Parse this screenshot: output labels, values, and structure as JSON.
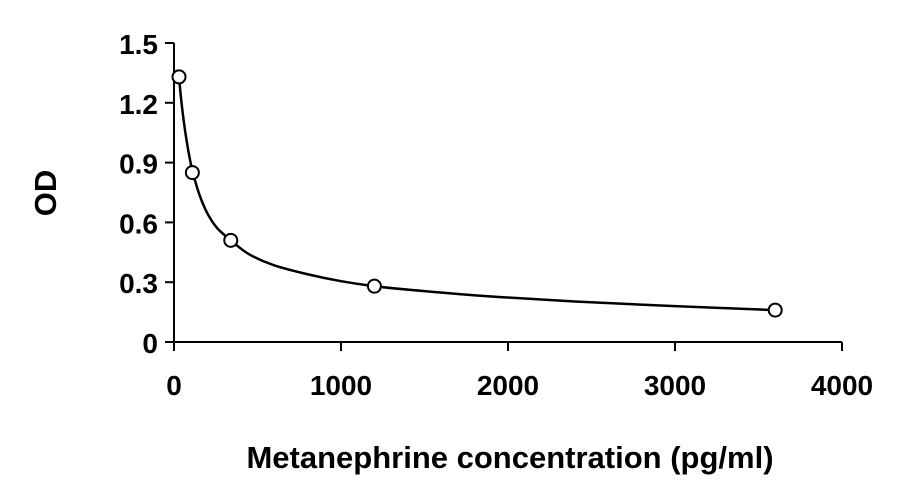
{
  "chart_data": {
    "type": "scatter",
    "title": "",
    "xlabel": "Metanephrine concentration (pg/ml)",
    "ylabel": "OD",
    "xlim": [
      0,
      4000
    ],
    "ylim": [
      0,
      1.5
    ],
    "x_ticks": [
      0,
      1000,
      2000,
      3000,
      4000
    ],
    "x_tick_labels": [
      "0",
      "1000",
      "2000",
      "3000",
      "4000"
    ],
    "y_ticks": [
      0,
      0.3,
      0.6,
      0.9,
      1.2,
      1.5
    ],
    "y_tick_labels": [
      "0",
      "0.3",
      "0.6",
      "0.9",
      "1.2",
      "1.5"
    ],
    "grid": false,
    "legend": "none",
    "marker": "open-circle",
    "trendline": "smooth fitted curve",
    "colors": {
      "axis": "#000000",
      "points": "#000000",
      "curve": "#000000"
    },
    "series": [
      {
        "x": [
          30,
          110,
          340,
          1200,
          3600
        ],
        "y": [
          1.33,
          0.85,
          0.51,
          0.28,
          0.16
        ]
      }
    ],
    "fit_curve": {
      "x": [
        30,
        40,
        55,
        70,
        90,
        110,
        140,
        170,
        210,
        260,
        340,
        450,
        600,
        800,
        1000,
        1200,
        1500,
        1900,
        2400,
        3000,
        3600
      ],
      "y": [
        1.33,
        1.24,
        1.13,
        1.04,
        0.94,
        0.86,
        0.77,
        0.7,
        0.63,
        0.57,
        0.51,
        0.44,
        0.385,
        0.34,
        0.305,
        0.28,
        0.255,
        0.228,
        0.203,
        0.18,
        0.16
      ]
    }
  }
}
